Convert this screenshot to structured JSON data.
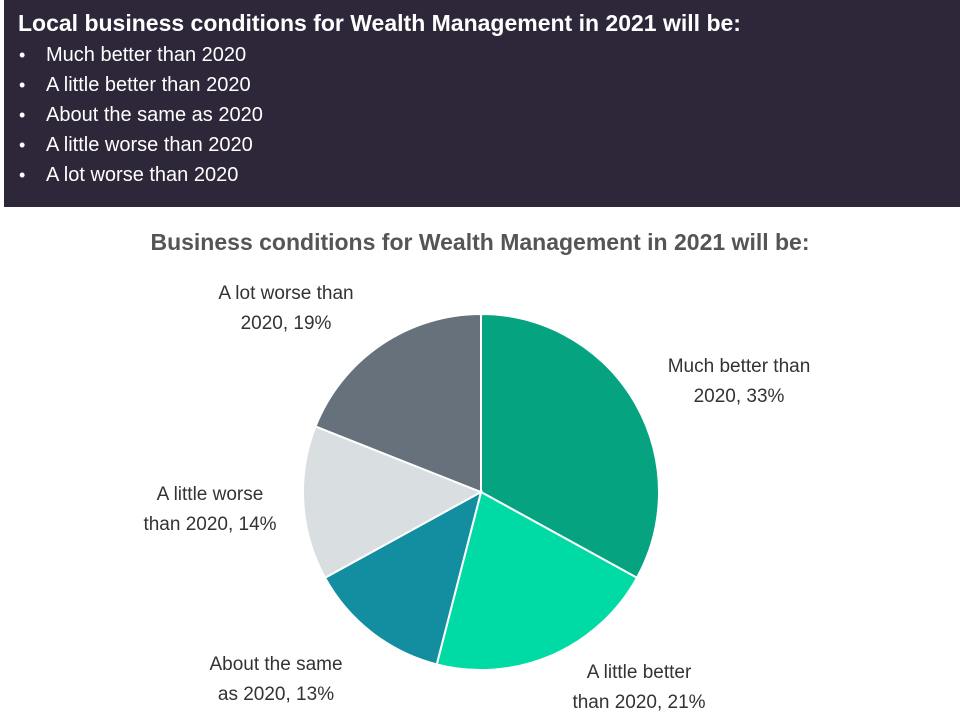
{
  "header": {
    "title": "Local business conditions for Wealth Management in 2021 will be:",
    "bullets": [
      "Much better than 2020",
      "A little better than 2020",
      "About the same as 2020",
      "A little worse than 2020",
      "A lot worse than 2020"
    ],
    "bullet_symbol": "•",
    "background_color": "#2e2739"
  },
  "chart_data": {
    "type": "pie",
    "title": "Business conditions for Wealth Management in 2021 will be:",
    "start_angle_deg": 0,
    "direction": "clockwise",
    "slices": [
      {
        "name": "Much better than 2020",
        "value": 33,
        "label": "Much better than\n2020, 33%",
        "color": "#05a37f"
      },
      {
        "name": "A little better than 2020",
        "value": 21,
        "label": "A little better\nthan 2020, 21%",
        "color": "#00dba5"
      },
      {
        "name": "About the same as 2020",
        "value": 13,
        "label": "About the same\nas 2020, 13%",
        "color": "#138da0"
      },
      {
        "name": "A little worse than 2020",
        "value": 14,
        "label": "A little worse\nthan 2020, 14%",
        "color": "#d9dee1"
      },
      {
        "name": "A lot worse than 2020",
        "value": 19,
        "label": "A lot worse than\n2020, 19%",
        "color": "#66717b"
      }
    ]
  }
}
